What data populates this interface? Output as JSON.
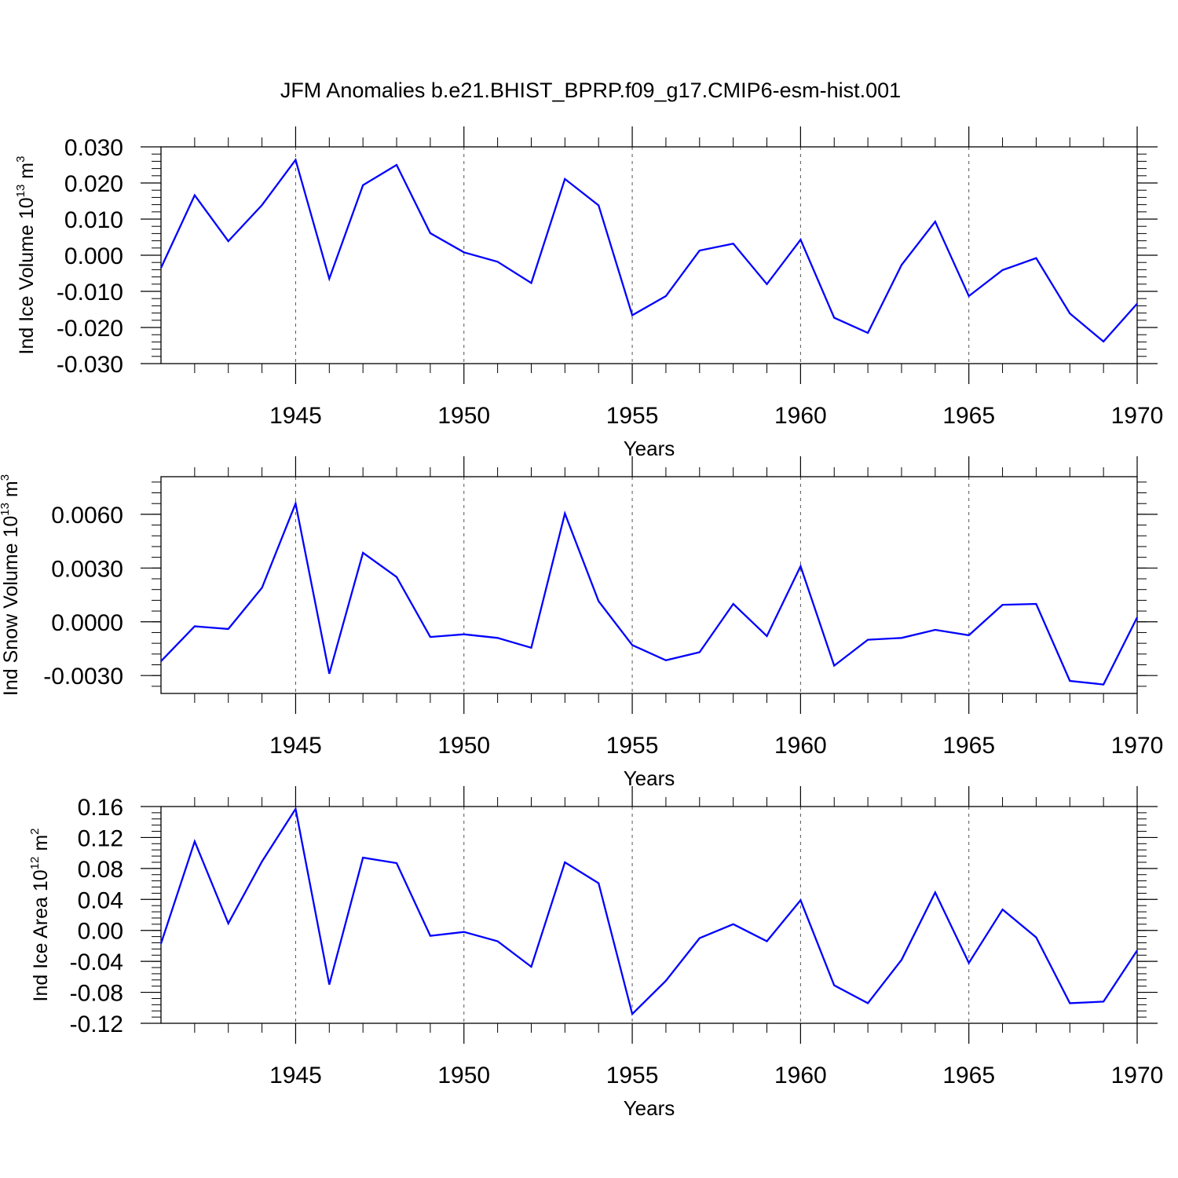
{
  "title": "JFM Anomalies b.e21.BHIST_BPRP.f09_g17.CMIP6-esm-hist.001",
  "series_color": "#0000ff",
  "chart_data": [
    {
      "type": "line",
      "ylabel": {
        "text": "Ind Ice Volume 10",
        "sup": "13",
        "unit": " m",
        "unit_sup": "3"
      },
      "xlabel": "Years",
      "xlim": [
        1941,
        1970
      ],
      "ylim": [
        -0.03,
        0.03
      ],
      "xticks": [
        1945,
        1950,
        1955,
        1960,
        1965,
        1970
      ],
      "xtick_labels": [
        "1945",
        "1950",
        "1955",
        "1960",
        "1965",
        "1970"
      ],
      "yticks": [
        -0.03,
        -0.02,
        -0.01,
        0.0,
        0.01,
        0.02,
        0.03
      ],
      "ytick_labels": [
        "-0.030",
        "-0.020",
        "-0.010",
        "0.000",
        "0.010",
        "0.020",
        "0.030"
      ],
      "yminor_step": 0.002,
      "grid": "vertical dashed at major x ticks",
      "x": [
        1941,
        1942,
        1943,
        1944,
        1945,
        1946,
        1947,
        1948,
        1949,
        1950,
        1951,
        1952,
        1953,
        1954,
        1955,
        1956,
        1957,
        1958,
        1959,
        1960,
        1961,
        1962,
        1963,
        1964,
        1965,
        1966,
        1967,
        1968,
        1969,
        1970
      ],
      "y": [
        -0.0035,
        0.0166,
        0.0039,
        0.0139,
        0.0264,
        -0.0065,
        0.0194,
        0.025,
        0.0061,
        0.0008,
        -0.0018,
        -0.0077,
        0.0211,
        0.0138,
        -0.0166,
        -0.0113,
        0.0013,
        0.0032,
        -0.008,
        0.0043,
        -0.0173,
        -0.0215,
        -0.0027,
        0.0093,
        -0.0113,
        -0.0041,
        -0.0008,
        -0.0161,
        -0.0239,
        -0.0134
      ]
    },
    {
      "type": "line",
      "ylabel": {
        "text": "Ind Snow Volume 10",
        "sup": "13",
        "unit": " m",
        "unit_sup": "3"
      },
      "xlabel": "Years",
      "xlim": [
        1941,
        1970
      ],
      "ylim": [
        -0.004,
        0.0081
      ],
      "xticks": [
        1945,
        1950,
        1955,
        1960,
        1965,
        1970
      ],
      "xtick_labels": [
        "1945",
        "1950",
        "1955",
        "1960",
        "1965",
        "1970"
      ],
      "yticks": [
        -0.003,
        0.0,
        0.003,
        0.006
      ],
      "ytick_labels": [
        "-0.0030",
        "0.0000",
        "0.0030",
        "0.0060"
      ],
      "yminor_step": 0.0006,
      "grid": "vertical dashed at major x ticks",
      "x": [
        1941,
        1942,
        1943,
        1944,
        1945,
        1946,
        1947,
        1948,
        1949,
        1950,
        1951,
        1952,
        1953,
        1954,
        1955,
        1956,
        1957,
        1958,
        1959,
        1960,
        1961,
        1962,
        1963,
        1964,
        1965,
        1966,
        1967,
        1968,
        1969,
        1970
      ],
      "y": [
        -0.0022,
        -0.00025,
        -0.0004,
        0.0019,
        0.0066,
        -0.0029,
        0.00385,
        0.0025,
        -0.00085,
        -0.0007,
        -0.0009,
        -0.00145,
        0.00605,
        0.00115,
        -0.0013,
        -0.00215,
        -0.0017,
        0.001,
        -0.0008,
        0.0031,
        -0.00245,
        -0.001,
        -0.0009,
        -0.00045,
        -0.00075,
        0.00095,
        0.001,
        -0.0033,
        -0.0035,
        0.00025
      ]
    },
    {
      "type": "line",
      "ylabel": {
        "text": "Ind Ice Area 10",
        "sup": "12",
        "unit": " m",
        "unit_sup": "2"
      },
      "xlabel": "Years",
      "xlim": [
        1941,
        1970
      ],
      "ylim": [
        -0.12,
        0.16
      ],
      "xticks": [
        1945,
        1950,
        1955,
        1960,
        1965,
        1970
      ],
      "xtick_labels": [
        "1945",
        "1950",
        "1955",
        "1960",
        "1965",
        "1970"
      ],
      "yticks": [
        -0.12,
        -0.08,
        -0.04,
        0.0,
        0.04,
        0.08,
        0.12,
        0.16
      ],
      "ytick_labels": [
        "-0.12",
        "-0.08",
        "-0.04",
        "0.00",
        "0.04",
        "0.08",
        "0.12",
        "0.16"
      ],
      "yminor_step": 0.008,
      "grid": "vertical dashed at major x ticks",
      "x": [
        1941,
        1942,
        1943,
        1944,
        1945,
        1946,
        1947,
        1948,
        1949,
        1950,
        1951,
        1952,
        1953,
        1954,
        1955,
        1956,
        1957,
        1958,
        1959,
        1960,
        1961,
        1962,
        1963,
        1964,
        1965,
        1966,
        1967,
        1968,
        1969,
        1970
      ],
      "y": [
        -0.017,
        0.115,
        0.009,
        0.089,
        0.157,
        -0.07,
        0.094,
        0.087,
        -0.007,
        -0.002,
        -0.014,
        -0.047,
        0.088,
        0.061,
        -0.108,
        -0.065,
        -0.01,
        0.008,
        -0.014,
        0.039,
        -0.071,
        -0.094,
        -0.038,
        0.049,
        -0.042,
        0.027,
        -0.009,
        -0.094,
        -0.092,
        -0.026
      ]
    }
  ]
}
